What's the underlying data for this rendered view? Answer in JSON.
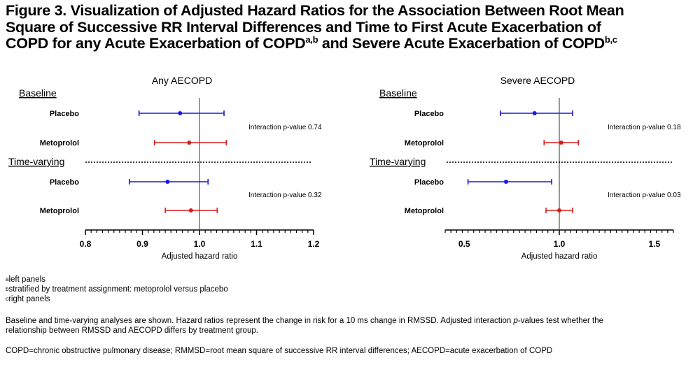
{
  "title": {
    "line1": "Figure 3. Visualization of Adjusted Hazard Ratios for the Association Between Root Mean",
    "line2": "Square of Successive RR Interval Differences and Time to First Acute Exacerbation of",
    "line3a": "COPD for any Acute Exacerbation of COPD",
    "sup1": "a,b",
    "line3b": " and Severe Acute Exacerbation of COPD",
    "sup2": "b,c"
  },
  "footnotes": {
    "a_mark": "a",
    "a_text": "left panels",
    "b_mark": "b",
    "b_text": "stratified by treatment assignment: metoprolol versus placebo",
    "c_mark": "c",
    "c_text": "right panels",
    "note1": "Baseline and time-varying analyses are shown. Hazard ratios represent the change in risk for a 10 ms change in RMSSD.  Adjusted interaction ",
    "note1_italic": "p",
    "note1_end": "-values test whether the relationship between RMSSD and AECOPD differs by treatment group.",
    "note2": "COPD=chronic obstructive pulmonary disease; RMMSD=root mean square of successive RR interval differences; AECOPD=acute exacerbation of COPD"
  },
  "colors": {
    "placebo": "#1a1adc",
    "metoprolol": "#d81c1c",
    "axis": "#000000",
    "reference": "#555555"
  },
  "chart_data": [
    {
      "type": "forest",
      "title": "Any AECOPD",
      "xlabel": "Adjusted hazard ratio",
      "xlim": [
        0.8,
        1.2
      ],
      "xticks": [
        "0.8",
        "0.9",
        "1.0",
        "1.1",
        "1.2"
      ],
      "reference_line": 1.0,
      "groups": [
        {
          "label": "Baseline",
          "interaction": "Interaction p-value 0.74",
          "rows": [
            {
              "label": "Placebo",
              "series": "placebo",
              "hr": 0.966,
              "lo": 0.894,
              "hi": 1.043
            },
            {
              "label": "Metoprolol",
              "series": "metoprolol",
              "hr": 0.982,
              "lo": 0.921,
              "hi": 1.047
            }
          ]
        },
        {
          "label": "Time-varying",
          "interaction": "Interaction p-value 0.32",
          "rows": [
            {
              "label": "Placebo",
              "series": "placebo",
              "hr": 0.944,
              "lo": 0.877,
              "hi": 1.015
            },
            {
              "label": "Metoprolol",
              "series": "metoprolol",
              "hr": 0.985,
              "lo": 0.94,
              "hi": 1.031
            }
          ]
        }
      ]
    },
    {
      "type": "forest",
      "title": "Severe AECOPD",
      "xlabel": "Adjusted hazard ratio",
      "xlim": [
        0.4,
        1.6
      ],
      "xticks": [
        "0.5",
        "1.0",
        "1.5"
      ],
      "reference_line": 1.0,
      "groups": [
        {
          "label": "Baseline",
          "interaction": "Interaction p-value 0.18",
          "rows": [
            {
              "label": "Placebo",
              "series": "placebo",
              "hr": 0.87,
              "lo": 0.69,
              "hi": 1.07
            },
            {
              "label": "Metoprolol",
              "series": "metoprolol",
              "hr": 1.01,
              "lo": 0.92,
              "hi": 1.1
            }
          ]
        },
        {
          "label": "Time-varying",
          "interaction": "Interaction p-value 0.03",
          "rows": [
            {
              "label": "Placebo",
              "series": "placebo",
              "hr": 0.72,
              "lo": 0.52,
              "hi": 0.96
            },
            {
              "label": "Metoprolol",
              "series": "metoprolol",
              "hr": 1.0,
              "lo": 0.93,
              "hi": 1.07
            }
          ]
        }
      ]
    }
  ]
}
